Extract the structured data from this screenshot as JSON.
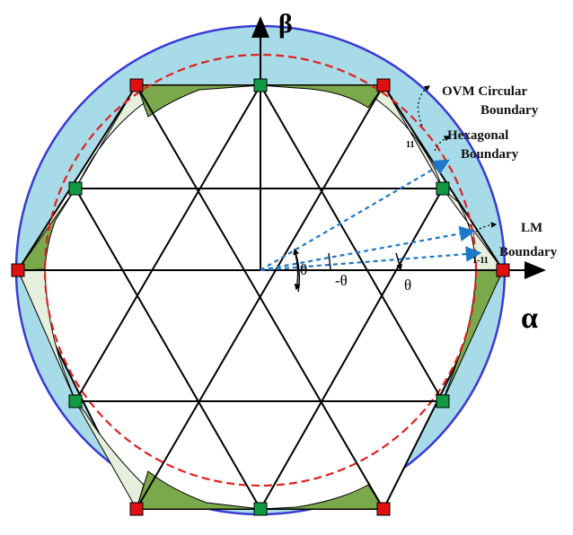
{
  "axes": {
    "beta_label": "β",
    "alpha_label": "α"
  },
  "annotations": {
    "ovm_line1": "OVM Circular",
    "ovm_line2": "Boundary",
    "hex_line1": "Hexagonal",
    "hex_line2": "Boundary",
    "lm_line1": "LM",
    "lm_line2": "Boundary",
    "theta": "θ",
    "neg_theta": "-θ",
    "vertex_tag": "1-11",
    "small_tag": "11"
  },
  "colors": {
    "outer_circle_fill": "#a8dbe8",
    "outer_circle_stroke": "#3a3ad6",
    "green_region": "#7ba84a",
    "light_region": "#e6efdc",
    "ovm_circle": "#e02020",
    "vector_arrows": "#1e78c8",
    "red_marker": "#e01010",
    "green_marker": "#119944"
  }
}
